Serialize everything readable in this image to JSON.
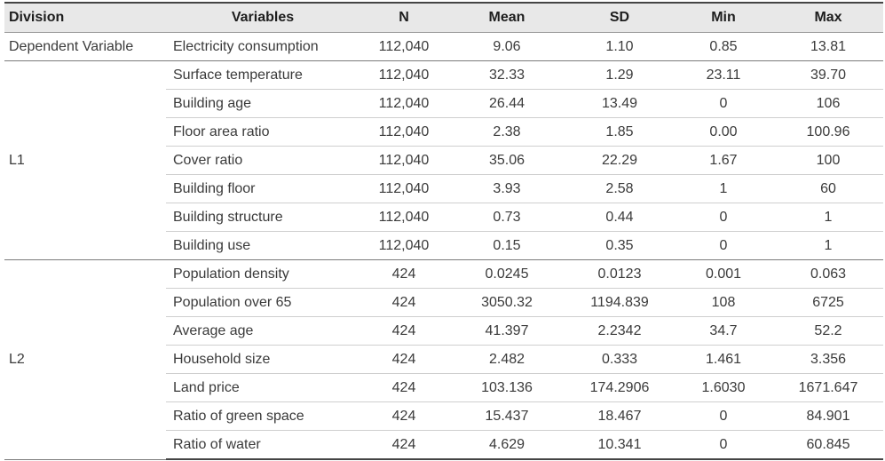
{
  "headers": [
    "Division",
    "Variables",
    "N",
    "Mean",
    "SD",
    "Min",
    "Max"
  ],
  "groups": [
    {
      "division": "Dependent Variable",
      "rows": [
        [
          "Electricity consumption",
          "112,040",
          "9.06",
          "1.10",
          "0.85",
          "13.81"
        ]
      ]
    },
    {
      "division": "L1",
      "rows": [
        [
          "Surface temperature",
          "112,040",
          "32.33",
          "1.29",
          "23.11",
          "39.70"
        ],
        [
          "Building age",
          "112,040",
          "26.44",
          "13.49",
          "0",
          "106"
        ],
        [
          "Floor area ratio",
          "112,040",
          "2.38",
          "1.85",
          "0.00",
          "100.96"
        ],
        [
          "Cover ratio",
          "112,040",
          "35.06",
          "22.29",
          "1.67",
          "100"
        ],
        [
          "Building floor",
          "112,040",
          "3.93",
          "2.58",
          "1",
          "60"
        ],
        [
          "Building structure",
          "112,040",
          "0.73",
          "0.44",
          "0",
          "1"
        ],
        [
          "Building use",
          "112,040",
          "0.15",
          "0.35",
          "0",
          "1"
        ]
      ]
    },
    {
      "division": "L2",
      "rows": [
        [
          "Population density",
          "424",
          "0.0245",
          "0.0123",
          "0.001",
          "0.063"
        ],
        [
          "Population over 65",
          "424",
          "3050.32",
          "1194.839",
          "108",
          "6725"
        ],
        [
          "Average age",
          "424",
          "41.397",
          "2.2342",
          "34.7",
          "52.2"
        ],
        [
          "Household size",
          "424",
          "2.482",
          "0.333",
          "1.461",
          "3.356"
        ],
        [
          "Land price",
          "424",
          "103.136",
          "174.2906",
          "1.6030",
          "1671.647"
        ],
        [
          "Ratio of green space",
          "424",
          "15.437",
          "18.467",
          "0",
          "84.901"
        ],
        [
          "Ratio of water",
          "424",
          "4.629",
          "10.341",
          "0",
          "60.845"
        ]
      ]
    }
  ]
}
